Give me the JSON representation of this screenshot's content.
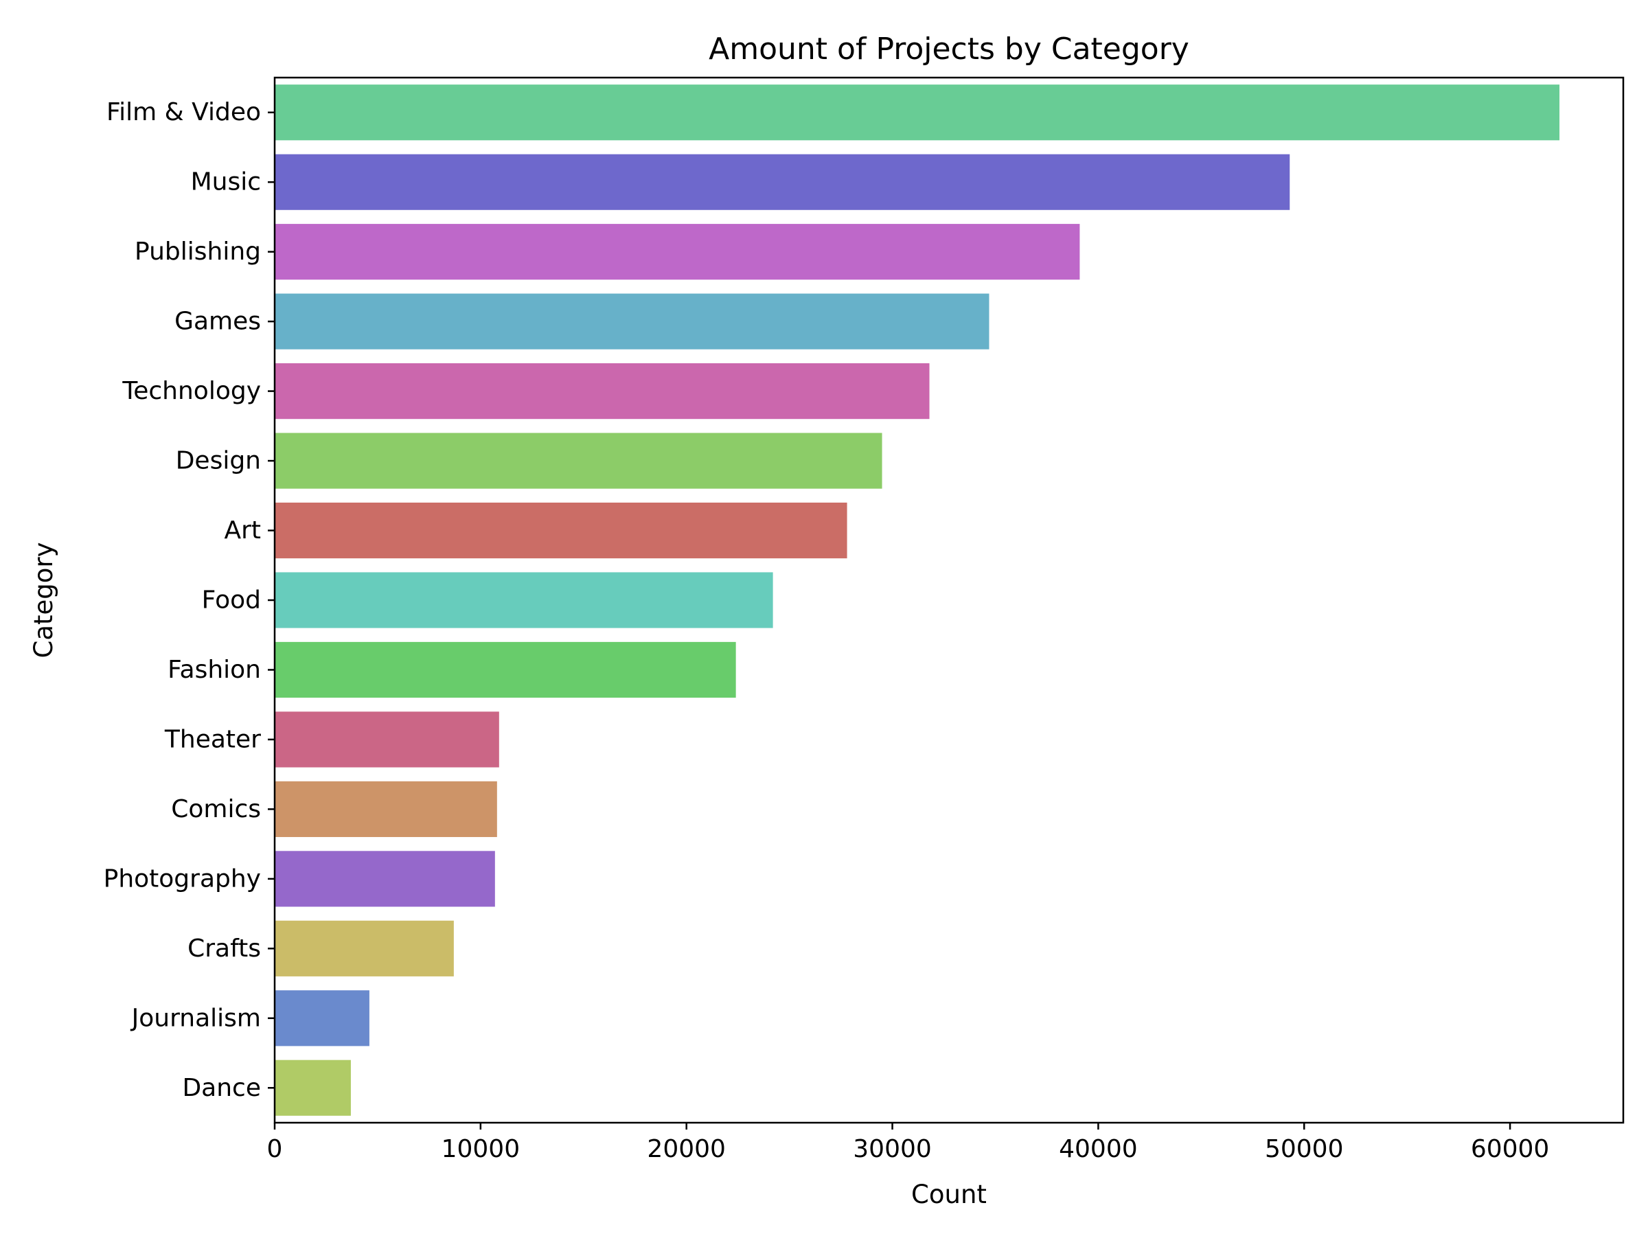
{
  "chart_data": {
    "type": "bar",
    "orientation": "horizontal",
    "title": "Amount of Projects by Category",
    "xlabel": "Count",
    "ylabel": "Category",
    "xlim": [
      0,
      65500
    ],
    "xticks": [
      0,
      10000,
      20000,
      30000,
      40000,
      50000,
      60000
    ],
    "xtick_labels": [
      "0",
      "10000",
      "20000",
      "30000",
      "40000",
      "50000",
      "60000"
    ],
    "grid": false,
    "legend": "none",
    "categories": [
      "Film & Video",
      "Music",
      "Publishing",
      "Games",
      "Technology",
      "Design",
      "Art",
      "Food",
      "Fashion",
      "Theater",
      "Comics",
      "Photography",
      "Crafts",
      "Journalism",
      "Dance"
    ],
    "values": [
      62400,
      49300,
      39100,
      34700,
      31800,
      29500,
      27800,
      24200,
      22400,
      10900,
      10800,
      10700,
      8700,
      4600,
      3700
    ],
    "colors": [
      "#68cc95",
      "#6e68cc",
      "#be68c9",
      "#67b1c9",
      "#cb67ad",
      "#8ccc68",
      "#cb6d66",
      "#67ccbc",
      "#68cc6b",
      "#cb6686",
      "#cd9468",
      "#9568cb",
      "#cbbc68",
      "#6a8acd",
      "#b0cb66"
    ]
  }
}
